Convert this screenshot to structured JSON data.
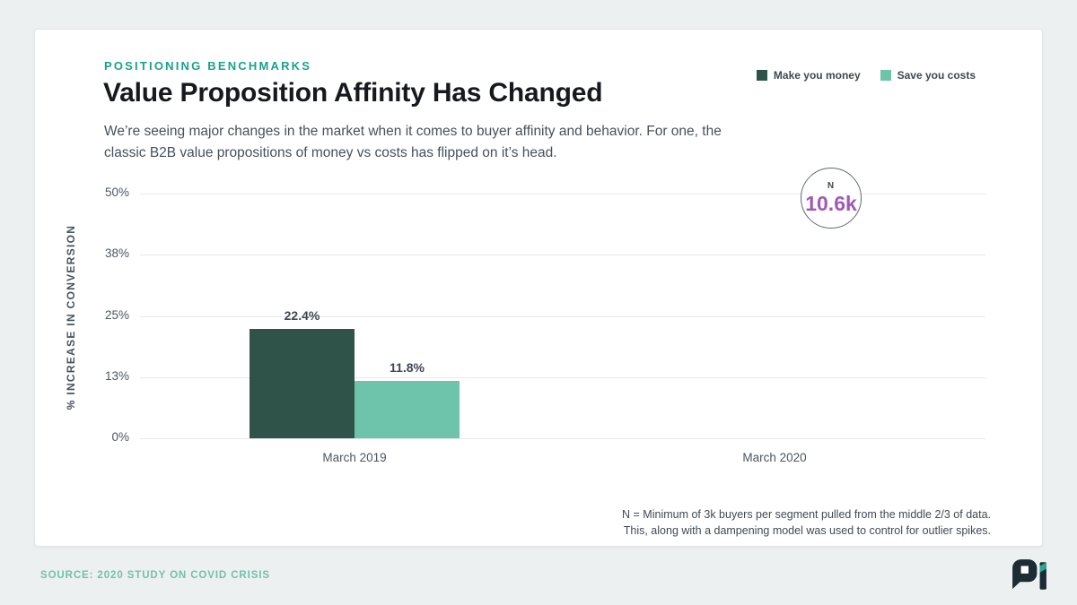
{
  "header": {
    "eyebrow": "POSITIONING BENCHMARKS",
    "title": "Value Proposition Affinity Has Changed",
    "subtitle_lines": [
      "We’re seeing major changes in the market when it comes to buyer affinity and behavior. For one, the",
      "classic B2B value propositions of money vs costs has flipped on it’s head."
    ]
  },
  "legend": {
    "items": [
      {
        "label": "Make you money",
        "color": "#2f5348"
      },
      {
        "label": "Save you costs",
        "color": "#6ec4ab"
      }
    ]
  },
  "chart_data": {
    "type": "bar",
    "title": "Value Proposition Affinity Has Changed",
    "categories": [
      "March 2019",
      "March 2020"
    ],
    "series": [
      {
        "name": "Make you money",
        "color": "#2f5348",
        "values": [
          22.4,
          null
        ],
        "value_labels": [
          "22.4%",
          null
        ]
      },
      {
        "name": "Save you costs",
        "color": "#6ec4ab",
        "values": [
          11.8,
          null
        ],
        "value_labels": [
          "11.8%",
          null
        ]
      }
    ],
    "ylabel": "% INCREASE IN CONVERSION",
    "xlabel": "",
    "ylim": [
      0,
      50
    ],
    "yticks": [
      {
        "label": "0%",
        "value": 0
      },
      {
        "label": "13%",
        "value": 12.5
      },
      {
        "label": "25%",
        "value": 25
      },
      {
        "label": "38%",
        "value": 37.5
      },
      {
        "label": "50%",
        "value": 50
      }
    ],
    "grid": true,
    "legend_position": "top-right",
    "annotation": {
      "label": "N",
      "value": "10.6k",
      "near_category": "March 2020"
    }
  },
  "footnote_lines": [
    "N = Minimum of 3k buyers per segment pulled from the middle 2/3 of data.",
    "This, along with a dampening model was used to control for outlier spikes."
  ],
  "source": "SOURCE: 2020 STUDY ON COVID CRISIS",
  "colors": {
    "accent_teal": "#19a28b",
    "bar_dark": "#2f5348",
    "bar_light": "#6ec4ab",
    "badge_value_purple": "#a158b6",
    "source_text": "#73c0ad"
  }
}
